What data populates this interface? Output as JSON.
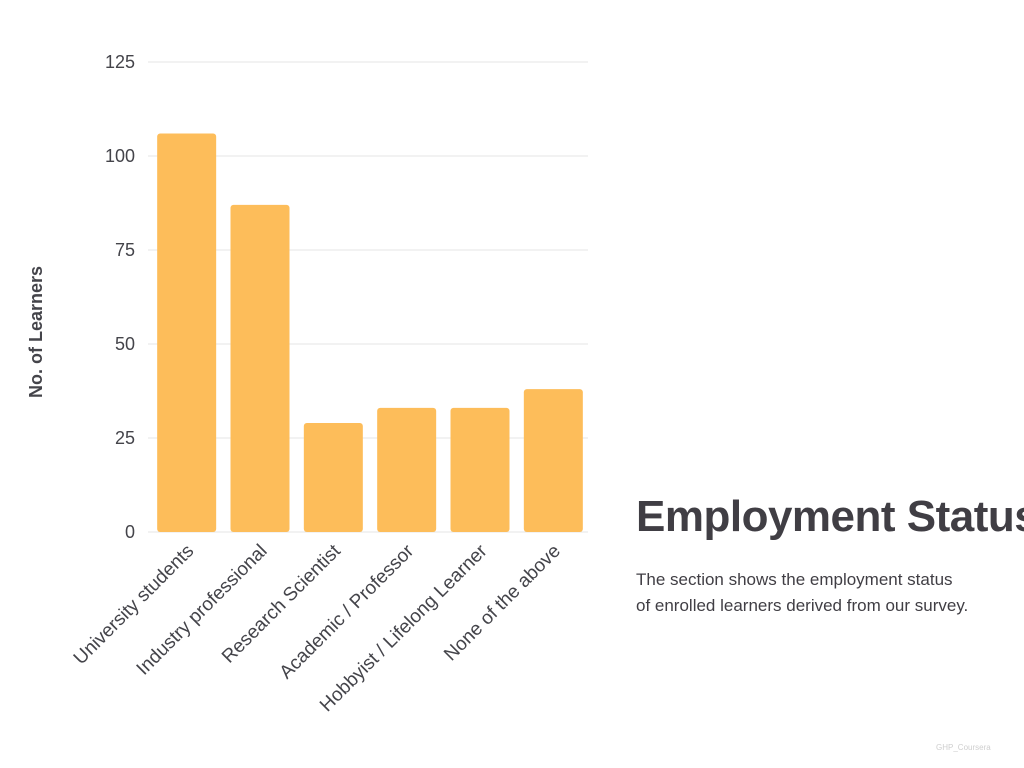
{
  "chart_data": {
    "type": "bar",
    "categories": [
      "University students",
      "Industry professional",
      "Research Scientist",
      "Academic / Professor",
      "Hobbyist / Lifelong Learner",
      "None of the above"
    ],
    "values": [
      106,
      87,
      29,
      33,
      33,
      38
    ],
    "ylabel": "No. of Learners",
    "xlabel": "",
    "ylim": [
      0,
      125
    ],
    "yticks": [
      0,
      25,
      50,
      75,
      100,
      125
    ],
    "grid": true,
    "bar_color": "#fdbd5a",
    "grid_color": "#e6e6e6"
  },
  "heading": "Employment Status",
  "description": {
    "line1": "The section shows the employment status",
    "line2": "of enrolled learners derived from our survey."
  },
  "watermark": "GHP_Coursera"
}
